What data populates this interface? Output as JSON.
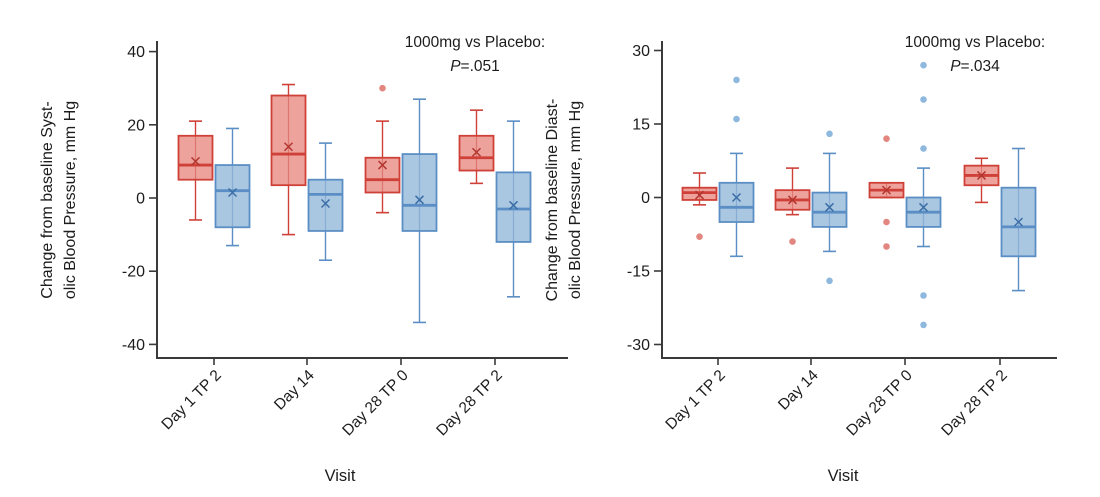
{
  "figure": {
    "xlabel": "Visit",
    "x_categories": [
      "Day 1 TP 2",
      "Day 14",
      "Day 28 TP 0",
      "Day 28 TP 2"
    ]
  },
  "colors": {
    "treatment_fill": "#eda29c",
    "treatment_stroke": "#cf4138",
    "treatment_mean": "#b2352f",
    "treatment_outlier": "#e28780",
    "placebo_fill": "#aac7e2",
    "placebo_stroke": "#5b8ec4",
    "placebo_mean": "#3c6ea6",
    "placebo_outlier": "#8fb8de",
    "axis": "#3a3a3a",
    "text": "#1c1c1c"
  },
  "chart_data": [
    {
      "type": "box",
      "panel": "systolic",
      "title": "",
      "xlabel": "Visit",
      "ylabel_lines": [
        "Change from baseline Syst-",
        "olic Blood Pressure, mm Hg"
      ],
      "annotation_line1": "1000mg vs Placebo:",
      "annotation_p_italic": "P",
      "annotation_p_rest": "=.051",
      "categories": [
        "Day 1 TP 2",
        "Day 14",
        "Day 28 TP 0",
        "Day 28 TP 2"
      ],
      "y_ticks": [
        40,
        20,
        0,
        -20,
        -40
      ],
      "ylim": [
        -43,
        42
      ],
      "grid": false,
      "series": [
        {
          "name": "1000mg",
          "fill": "#eda29c",
          "stroke": "#cf4138",
          "mean_stroke": "#b2352f",
          "outlier_fill": "#e28780",
          "boxes": [
            {
              "whisker_low": -6,
              "q1": 5,
              "median": 9,
              "q3": 17,
              "whisker_high": 21,
              "mean": 10,
              "outliers": []
            },
            {
              "whisker_low": -10,
              "q1": 3.5,
              "median": 12,
              "q3": 28,
              "whisker_high": 31,
              "mean": 14,
              "outliers": []
            },
            {
              "whisker_low": -4,
              "q1": 1.5,
              "median": 5,
              "q3": 11,
              "whisker_high": 21,
              "mean": 9,
              "outliers": [
                30
              ]
            },
            {
              "whisker_low": 4,
              "q1": 7.5,
              "median": 11,
              "q3": 17,
              "whisker_high": 24,
              "mean": 12.5,
              "outliers": []
            }
          ]
        },
        {
          "name": "Placebo",
          "fill": "#aac7e2",
          "stroke": "#5b8ec4",
          "mean_stroke": "#3c6ea6",
          "outlier_fill": "#8fb8de",
          "boxes": [
            {
              "whisker_low": -13,
              "q1": -8,
              "median": 2,
              "q3": 9,
              "whisker_high": 19,
              "mean": 1.5,
              "outliers": []
            },
            {
              "whisker_low": -17,
              "q1": -9,
              "median": 1,
              "q3": 5,
              "whisker_high": 15,
              "mean": -1.5,
              "outliers": []
            },
            {
              "whisker_low": -34,
              "q1": -9,
              "median": -2,
              "q3": 12,
              "whisker_high": 27,
              "mean": -0.5,
              "outliers": []
            },
            {
              "whisker_low": -27,
              "q1": -12,
              "median": -3,
              "q3": 7,
              "whisker_high": 21,
              "mean": -2,
              "outliers": []
            }
          ]
        }
      ]
    },
    {
      "type": "box",
      "panel": "diastolic",
      "title": "",
      "xlabel": "Visit",
      "ylabel_lines": [
        "Change from baseline Diast-",
        "olic Blood Pressure, mm Hg"
      ],
      "annotation_line1": "1000mg vs Placebo:",
      "annotation_p_italic": "P",
      "annotation_p_rest": "=.034",
      "categories": [
        "Day 1 TP 2",
        "Day 14",
        "Day 28 TP 0",
        "Day 28 TP 2"
      ],
      "y_ticks": [
        30,
        15,
        0,
        -15,
        -30
      ],
      "ylim": [
        -32,
        31
      ],
      "grid": false,
      "series": [
        {
          "name": "1000mg",
          "fill": "#eda29c",
          "stroke": "#cf4138",
          "mean_stroke": "#b2352f",
          "outlier_fill": "#e28780",
          "boxes": [
            {
              "whisker_low": -1.5,
              "q1": -0.5,
              "median": 1,
              "q3": 2,
              "whisker_high": 5,
              "mean": 0.5,
              "outliers": [
                -8
              ]
            },
            {
              "whisker_low": -3.5,
              "q1": -2.5,
              "median": -0.5,
              "q3": 1.5,
              "whisker_high": 6,
              "mean": -0.5,
              "outliers": [
                -9
              ]
            },
            {
              "whisker_low": 0,
              "q1": 0,
              "median": 1.5,
              "q3": 3,
              "whisker_high": 3,
              "mean": 1.5,
              "outliers": [
                12,
                -5,
                -10
              ]
            },
            {
              "whisker_low": -1,
              "q1": 2.5,
              "median": 4.5,
              "q3": 6.5,
              "whisker_high": 8,
              "mean": 4.5,
              "outliers": []
            }
          ]
        },
        {
          "name": "Placebo",
          "fill": "#aac7e2",
          "stroke": "#5b8ec4",
          "mean_stroke": "#3c6ea6",
          "outlier_fill": "#8fb8de",
          "boxes": [
            {
              "whisker_low": -12,
              "q1": -5,
              "median": -2,
              "q3": 3,
              "whisker_high": 9,
              "mean": 0,
              "outliers": [
                24,
                16
              ]
            },
            {
              "whisker_low": -11,
              "q1": -6,
              "median": -3,
              "q3": 1,
              "whisker_high": 9,
              "mean": -2,
              "outliers": [
                13,
                -17
              ]
            },
            {
              "whisker_low": -10,
              "q1": -6,
              "median": -3,
              "q3": 0,
              "whisker_high": 6,
              "mean": -2,
              "outliers": [
                27,
                20,
                10,
                -20,
                -26
              ]
            },
            {
              "whisker_low": -19,
              "q1": -12,
              "median": -6,
              "q3": 2,
              "whisker_high": 10,
              "mean": -5,
              "outliers": []
            }
          ]
        }
      ]
    }
  ]
}
